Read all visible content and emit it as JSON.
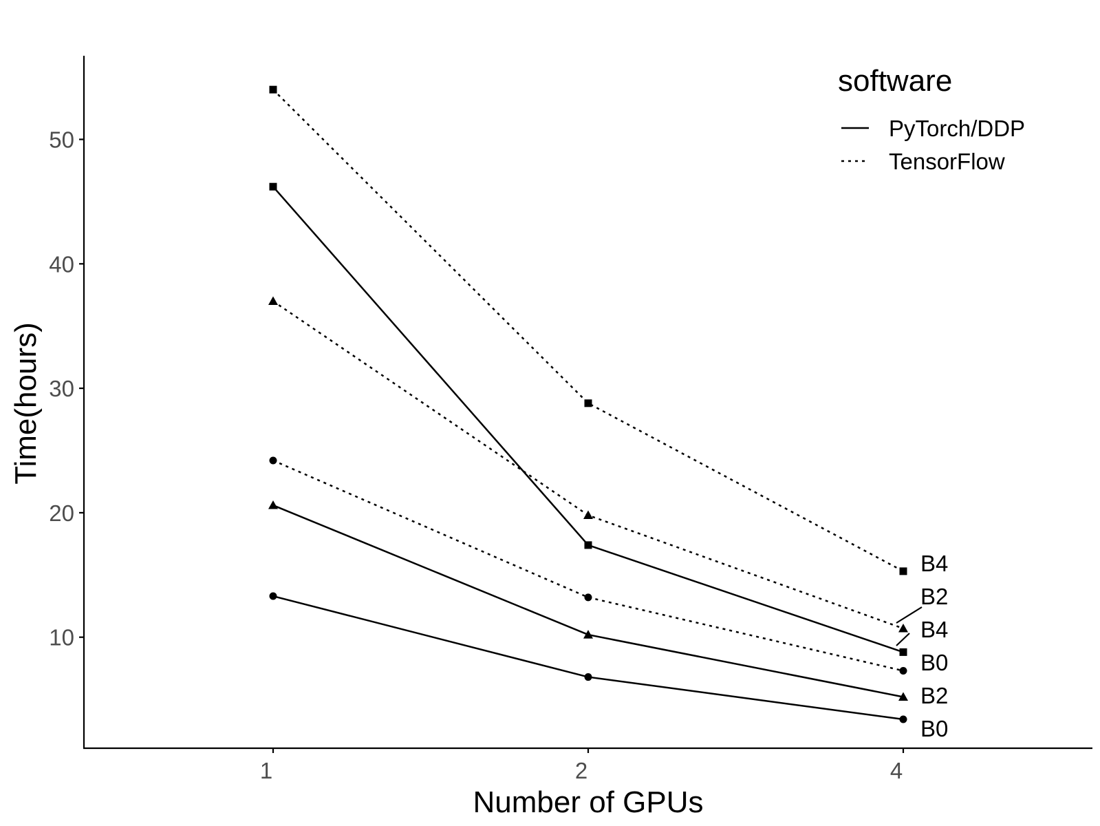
{
  "chart_data": {
    "type": "line",
    "xlabel": "Number of GPUs",
    "ylabel": "Time(hours)",
    "x_categories": [
      "1",
      "2",
      "4"
    ],
    "ylim": [
      1,
      56.5
    ],
    "yticks": [
      10,
      20,
      30,
      40,
      50
    ],
    "grid": false,
    "legend": {
      "title": "software",
      "placement": "top-right",
      "entries": [
        {
          "label": "PyTorch/DDP",
          "linetype": "solid"
        },
        {
          "label": "TensorFlow",
          "linetype": "dotted"
        }
      ]
    },
    "series": [
      {
        "name": "B0",
        "software": "PyTorch/DDP",
        "marker": "circle",
        "linetype": "solid",
        "values": [
          13.3,
          6.8,
          3.4
        ]
      },
      {
        "name": "B2",
        "software": "PyTorch/DDP",
        "marker": "triangle",
        "linetype": "solid",
        "values": [
          20.6,
          10.2,
          5.2
        ]
      },
      {
        "name": "B4",
        "software": "PyTorch/DDP",
        "marker": "square",
        "linetype": "solid",
        "values": [
          46.2,
          17.4,
          8.8
        ]
      },
      {
        "name": "B0",
        "software": "TensorFlow",
        "marker": "circle",
        "linetype": "dotted",
        "values": [
          24.2,
          13.2,
          7.3
        ]
      },
      {
        "name": "B2",
        "software": "TensorFlow",
        "marker": "triangle",
        "linetype": "dotted",
        "values": [
          37.0,
          19.8,
          10.7
        ]
      },
      {
        "name": "B4",
        "software": "TensorFlow",
        "marker": "square",
        "linetype": "dotted",
        "values": [
          54.0,
          28.8,
          15.3
        ]
      }
    ],
    "end_labels": [
      "B4",
      "B2",
      "B4",
      "B0",
      "B2",
      "B0"
    ]
  }
}
